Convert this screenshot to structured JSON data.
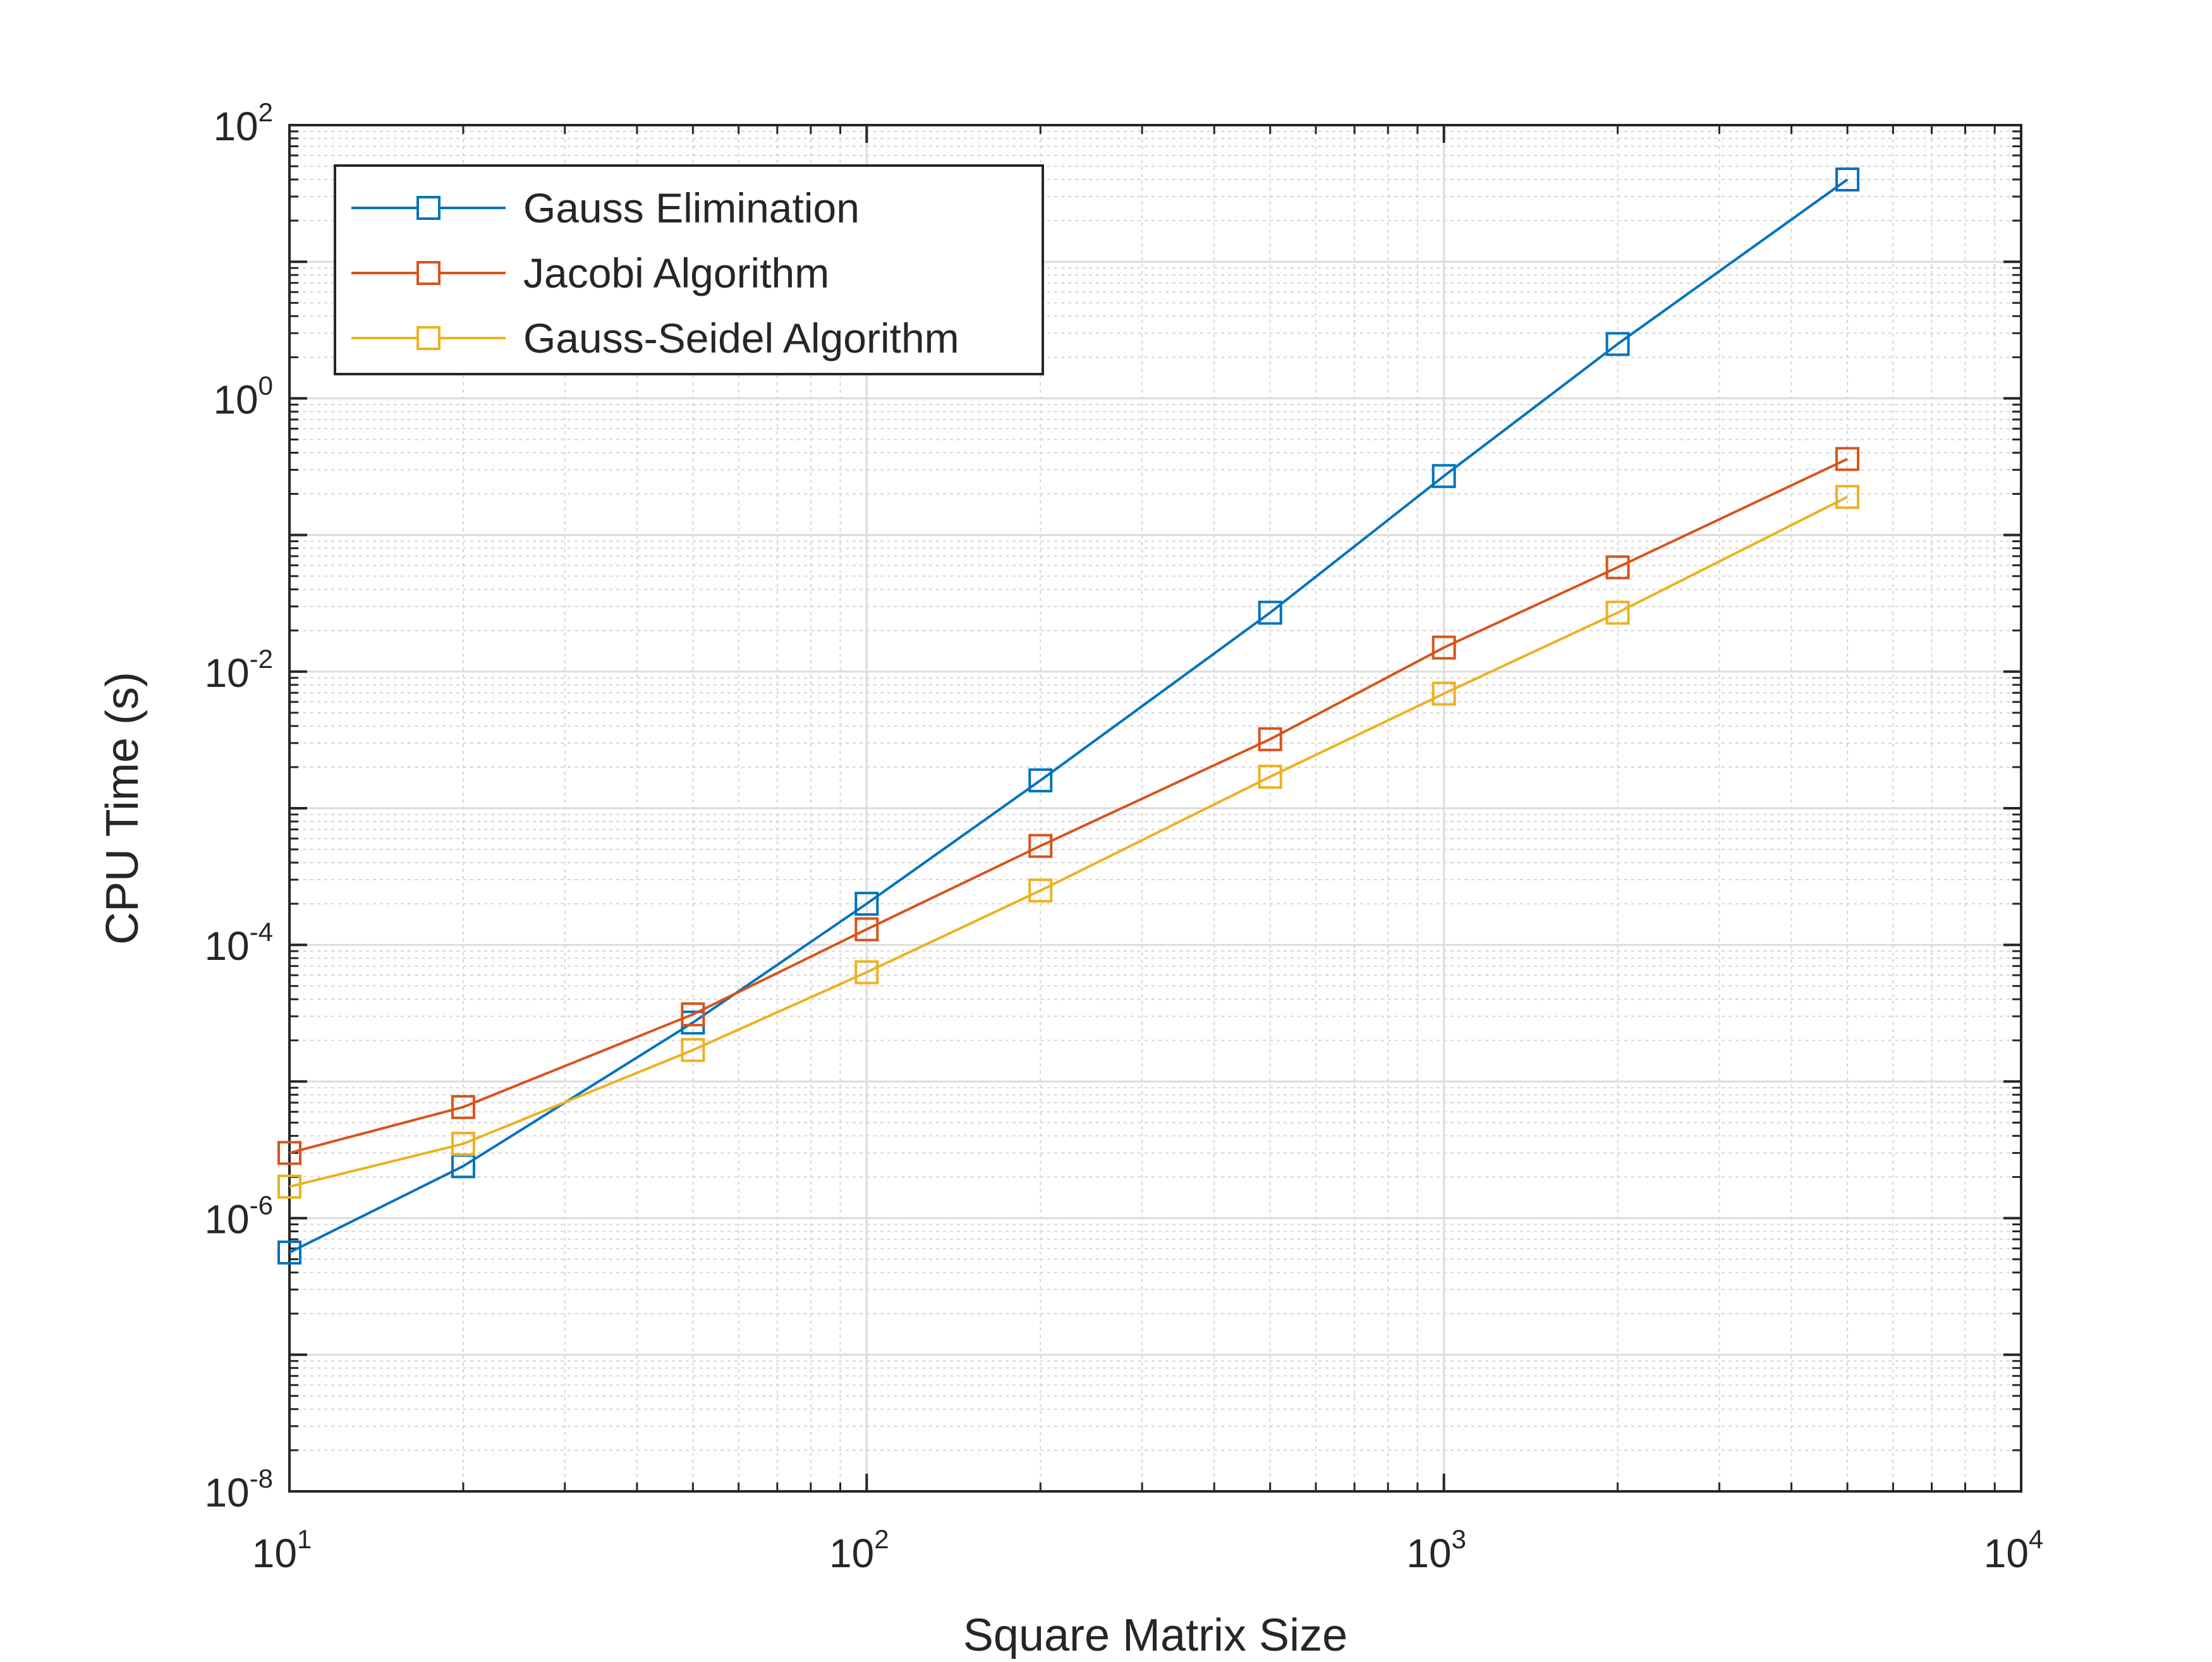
{
  "chart_data": {
    "type": "line",
    "xscale": "log",
    "yscale": "log",
    "xlabel": "Square Matrix Size",
    "ylabel": "CPU Time (s)",
    "xlim": [
      10,
      10000
    ],
    "ylim": [
      1e-08,
      100
    ],
    "grid": true,
    "minor_grid": true,
    "legend_position": "top-left",
    "x_ticks": [
      {
        "value": 10,
        "base": "10",
        "exp": "1"
      },
      {
        "value": 100,
        "base": "10",
        "exp": "2"
      },
      {
        "value": 1000,
        "base": "10",
        "exp": "3"
      },
      {
        "value": 10000,
        "base": "10",
        "exp": "4"
      }
    ],
    "y_ticks": [
      {
        "value": 1e-08,
        "base": "10",
        "exp": "-8"
      },
      {
        "value": 1e-06,
        "base": "10",
        "exp": "-6"
      },
      {
        "value": 0.0001,
        "base": "10",
        "exp": "-4"
      },
      {
        "value": 0.01,
        "base": "10",
        "exp": "-2"
      },
      {
        "value": 1,
        "base": "10",
        "exp": "0"
      },
      {
        "value": 100,
        "base": "10",
        "exp": "2"
      }
    ],
    "x": [
      10,
      20,
      50,
      100,
      200,
      500,
      1000,
      2000,
      5000
    ],
    "series": [
      {
        "name": "Gauss Elimination",
        "color": "#0072BD",
        "marker": "square",
        "values": [
          5.6e-07,
          2.4e-06,
          2.7e-05,
          0.0002,
          0.0016,
          0.027,
          0.27,
          2.5,
          40
        ]
      },
      {
        "name": "Jacobi Algorithm",
        "color": "#D95319",
        "marker": "square",
        "values": [
          3e-06,
          6.5e-06,
          3.1e-05,
          0.00013,
          0.00053,
          0.0032,
          0.015,
          0.058,
          0.36
        ]
      },
      {
        "name": "Gauss-Seidel Algorithm",
        "color": "#EDB120",
        "marker": "square",
        "values": [
          1.7e-06,
          3.5e-06,
          1.7e-05,
          6.3e-05,
          0.00025,
          0.0017,
          0.0069,
          0.027,
          0.19
        ]
      }
    ]
  }
}
